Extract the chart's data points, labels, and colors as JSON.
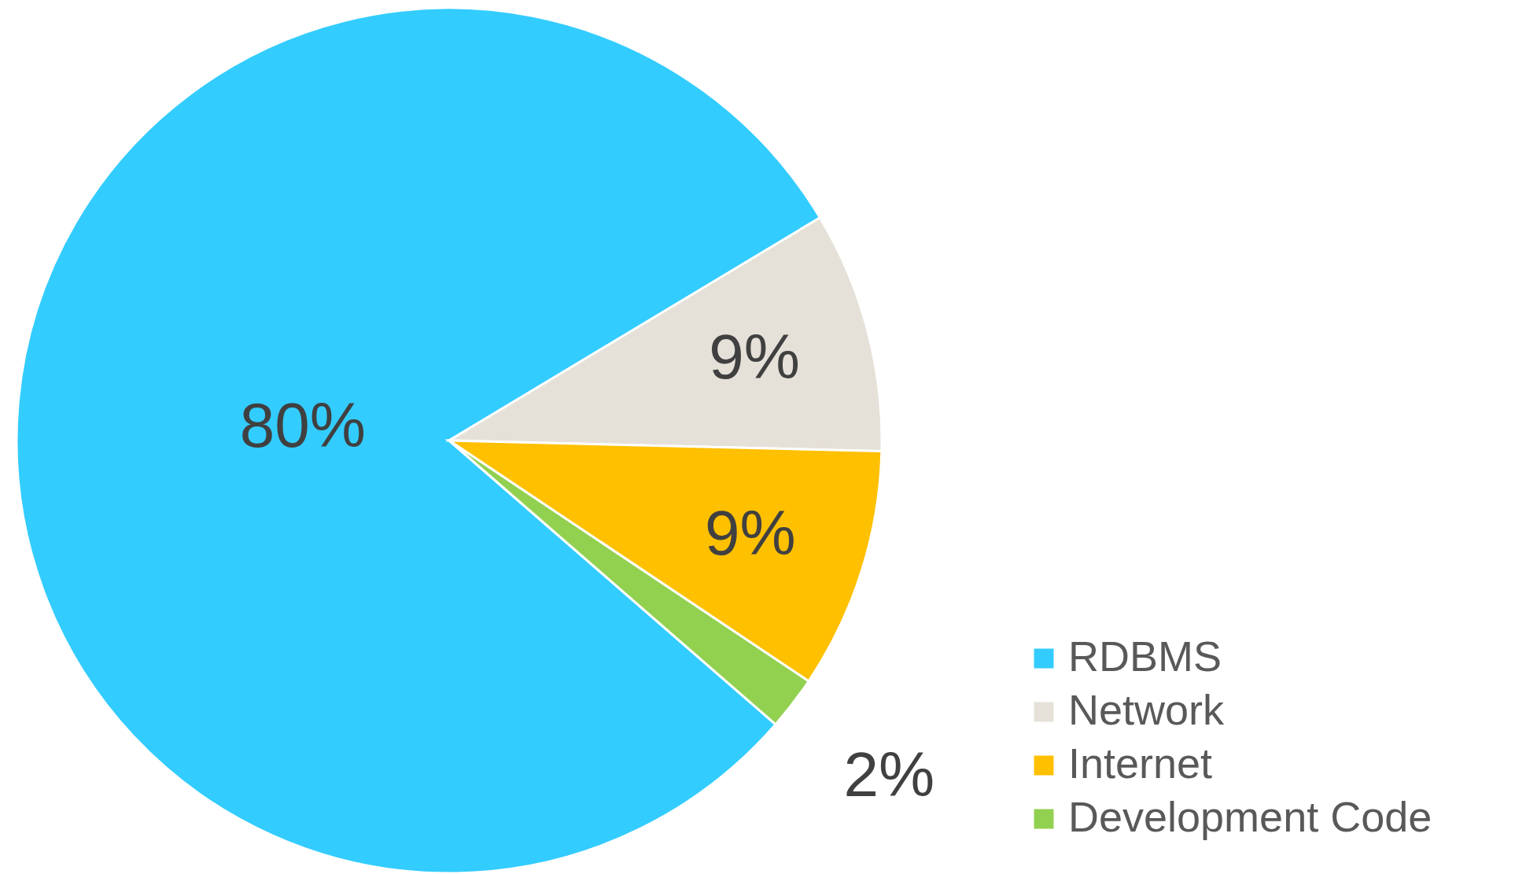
{
  "chart_data": {
    "type": "pie",
    "categories": [
      "RDBMS",
      "Network",
      "Internet",
      "Development Code"
    ],
    "values": [
      80,
      9,
      9,
      2
    ],
    "colors": [
      "#33ccff",
      "#e5e0d8",
      "#ffc000",
      "#92d050"
    ],
    "value_labels": [
      "80%",
      "9%",
      "9%",
      "2%"
    ],
    "legend": "bottom right"
  }
}
